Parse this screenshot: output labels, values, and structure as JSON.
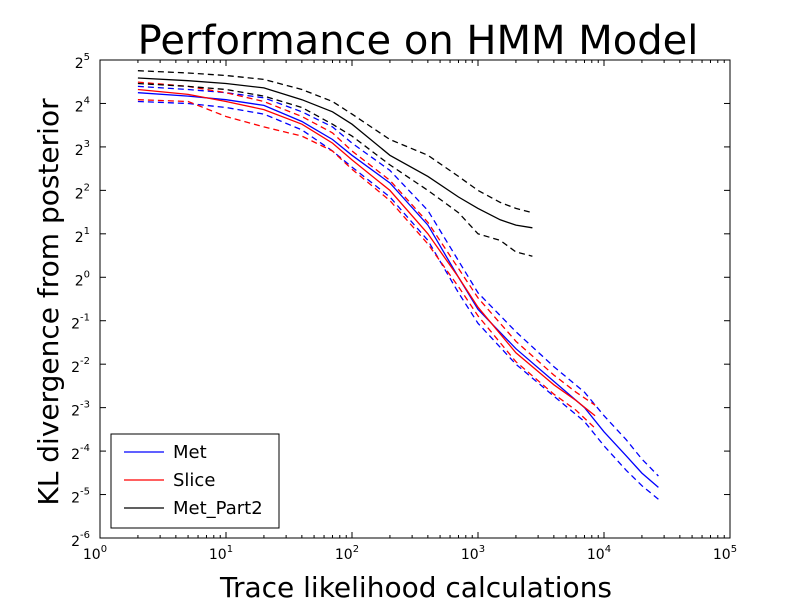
{
  "chart_data": {
    "type": "line",
    "title": "Performance on HMM Model",
    "xlabel": "Trace likelihood calculations",
    "ylabel": "KL divergence from posterior",
    "x_scale": "log10",
    "y_scale": "log2",
    "xlim": [
      1,
      100000
    ],
    "ylim": [
      0.015625,
      32
    ],
    "x_ticks": [
      {
        "base": "10",
        "exp": "0"
      },
      {
        "base": "10",
        "exp": "1"
      },
      {
        "base": "10",
        "exp": "2"
      },
      {
        "base": "10",
        "exp": "3"
      },
      {
        "base": "10",
        "exp": "4"
      },
      {
        "base": "10",
        "exp": "5"
      }
    ],
    "y_ticks": [
      {
        "base": "2",
        "exp": "-6"
      },
      {
        "base": "2",
        "exp": "-5"
      },
      {
        "base": "2",
        "exp": "-4"
      },
      {
        "base": "2",
        "exp": "-3"
      },
      {
        "base": "2",
        "exp": "-2"
      },
      {
        "base": "2",
        "exp": "-1"
      },
      {
        "base": "2",
        "exp": "0"
      },
      {
        "base": "2",
        "exp": "1"
      },
      {
        "base": "2",
        "exp": "2"
      },
      {
        "base": "2",
        "exp": "3"
      },
      {
        "base": "2",
        "exp": "4"
      },
      {
        "base": "2",
        "exp": "5"
      }
    ],
    "grid": false,
    "legend_position": "lower-left",
    "series": [
      {
        "name": "Met",
        "color": "#0000ff",
        "style": "solid",
        "x": [
          2,
          5,
          10,
          20,
          40,
          70,
          100,
          200,
          400,
          700,
          1000,
          2000,
          4000,
          7000,
          10000,
          15000,
          20000,
          27000
        ],
        "y": [
          19.0,
          18.0,
          17.0,
          15.5,
          12.0,
          9.0,
          7.0,
          4.5,
          2.3,
          1.0,
          0.6,
          0.32,
          0.19,
          0.125,
          0.085,
          0.058,
          0.044,
          0.035
        ]
      },
      {
        "name": "",
        "color": "#0000ff",
        "style": "dashed",
        "x": [
          2,
          5,
          10,
          20,
          40,
          70,
          100,
          200,
          400,
          700,
          1000,
          2000,
          4000,
          7000,
          10000,
          15000,
          20000,
          27000
        ],
        "y": [
          21.0,
          20.0,
          19.0,
          17.5,
          14.0,
          11.0,
          8.5,
          5.5,
          2.9,
          1.3,
          0.78,
          0.42,
          0.24,
          0.16,
          0.11,
          0.075,
          0.055,
          0.042
        ]
      },
      {
        "name": "",
        "color": "#0000ff",
        "style": "dashed",
        "x": [
          2,
          5,
          10,
          20,
          40,
          70,
          100,
          200,
          400,
          700,
          1000,
          2000,
          4000,
          7000,
          10000,
          15000,
          20000,
          27000
        ],
        "y": [
          16.5,
          16.0,
          15.0,
          13.5,
          10.5,
          7.5,
          5.8,
          3.6,
          1.8,
          0.78,
          0.48,
          0.25,
          0.15,
          0.1,
          0.068,
          0.046,
          0.036,
          0.029
        ]
      },
      {
        "name": "Slice",
        "color": "#ff0000",
        "style": "solid",
        "x": [
          2,
          5,
          10,
          20,
          40,
          70,
          100,
          200,
          400,
          700,
          1000,
          2000,
          4000,
          6000,
          8500
        ],
        "y": [
          20.0,
          18.5,
          16.5,
          14.5,
          11.5,
          8.5,
          6.5,
          4.0,
          2.0,
          1.0,
          0.62,
          0.3,
          0.18,
          0.14,
          0.11
        ]
      },
      {
        "name": "",
        "color": "#ff0000",
        "style": "dashed",
        "x": [
          2,
          5,
          10,
          20,
          40,
          70,
          100,
          200,
          400,
          700,
          1000,
          2000,
          4000,
          6000,
          8500
        ],
        "y": [
          22.5,
          21.0,
          19.0,
          16.5,
          13.0,
          10.0,
          7.5,
          4.7,
          2.4,
          1.15,
          0.72,
          0.36,
          0.21,
          0.16,
          0.13
        ]
      },
      {
        "name": "",
        "color": "#ff0000",
        "style": "dashed",
        "x": [
          2,
          5,
          10,
          20,
          40,
          70,
          100,
          200,
          400,
          700,
          1000,
          2000,
          4000,
          6000,
          8500
        ],
        "y": [
          17.0,
          16.5,
          13.0,
          11.0,
          9.5,
          7.5,
          5.6,
          3.4,
          1.7,
          0.86,
          0.54,
          0.26,
          0.155,
          0.12,
          0.09
        ]
      },
      {
        "name": "Met_Part2",
        "color": "#000000",
        "style": "solid",
        "x": [
          2,
          5,
          10,
          20,
          40,
          70,
          100,
          200,
          400,
          700,
          1000,
          1500,
          2000,
          2700
        ],
        "y": [
          24.0,
          23.0,
          22.0,
          20.5,
          17.0,
          14.0,
          11.5,
          7.0,
          5.0,
          3.6,
          3.0,
          2.5,
          2.3,
          2.2
        ]
      },
      {
        "name": "",
        "color": "#000000",
        "style": "dashed",
        "x": [
          2,
          5,
          10,
          20,
          40,
          70,
          100,
          200,
          400,
          700,
          1000,
          1500,
          2000,
          2700
        ],
        "y": [
          27.0,
          26.0,
          25.0,
          23.5,
          20.0,
          16.5,
          13.5,
          9.0,
          7.0,
          5.0,
          4.0,
          3.3,
          3.0,
          2.8
        ]
      },
      {
        "name": "",
        "color": "#000000",
        "style": "dashed",
        "x": [
          2,
          5,
          10,
          20,
          40,
          70,
          100,
          200,
          400,
          700,
          1000,
          1500,
          2000,
          2700
        ],
        "y": [
          22.0,
          21.0,
          20.0,
          18.0,
          15.0,
          11.5,
          9.5,
          6.0,
          4.0,
          2.8,
          2.0,
          1.8,
          1.5,
          1.4
        ]
      }
    ]
  }
}
